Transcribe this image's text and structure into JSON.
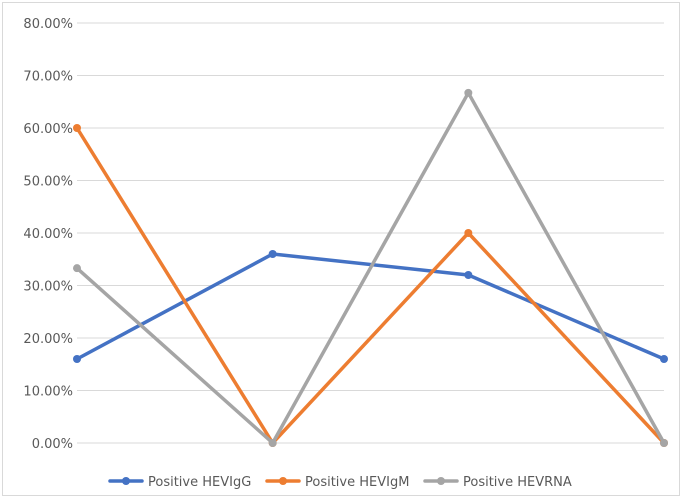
{
  "chart_data": {
    "type": "line",
    "categories": [
      "",
      "",
      "",
      ""
    ],
    "y_ticks": [
      "0.00%",
      "10.00%",
      "20.00%",
      "30.00%",
      "40.00%",
      "50.00%",
      "60.00%",
      "70.00%",
      "80.00%"
    ],
    "ylim": [
      0,
      0.8
    ],
    "grid": true,
    "legend_position": "bottom",
    "series": [
      {
        "name": "Positive HEVIgG",
        "color": "#4472C4",
        "values": [
          0.16,
          0.36,
          0.32,
          0.16
        ]
      },
      {
        "name": "Positive HEVIgM",
        "color": "#ED7D31",
        "values": [
          0.6,
          0.0,
          0.4,
          0.0
        ]
      },
      {
        "name": "Positive HEVRNA",
        "color": "#A5A5A5",
        "values": [
          0.333,
          0.0,
          0.667,
          0.0
        ]
      }
    ]
  }
}
